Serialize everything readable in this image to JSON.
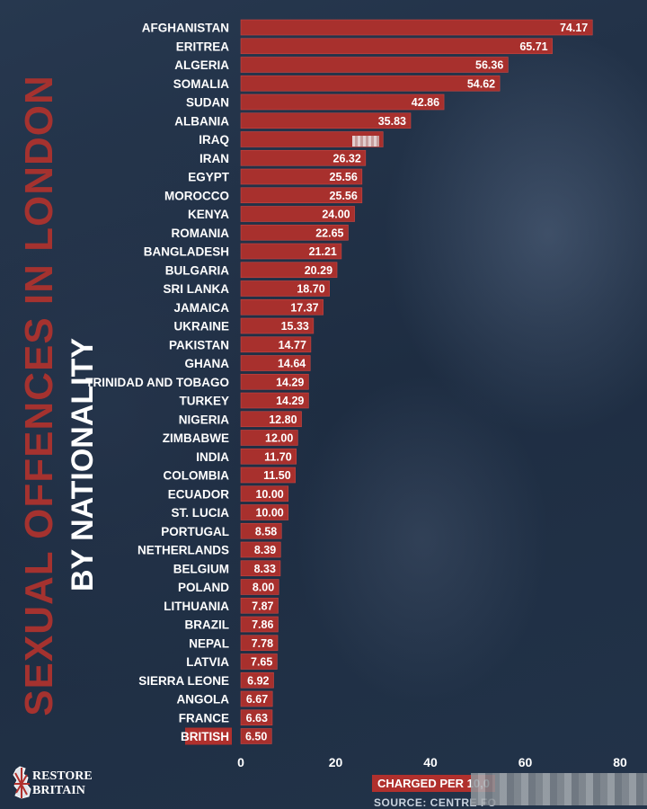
{
  "title": "SEXUAL OFFENCES IN LONDON",
  "subtitle": "BY NATIONALITY",
  "logo_text": [
    "RESTORE",
    "BRITAIN"
  ],
  "source": "SOURCE: CENTRE FO",
  "colors": {
    "bar": "#a8302d",
    "highlight": "#b0302d",
    "title": "#a5322f",
    "background": "#1f2f44"
  },
  "chart_data": {
    "type": "bar",
    "orientation": "horizontal",
    "xlabel": "CHARGED PER 10,0",
    "xlim": [
      0,
      80
    ],
    "xticks": [
      0,
      20,
      40,
      60,
      80
    ],
    "grid": false,
    "highlighted_category": "BRITISH",
    "obscured_value_labels": [
      "IRAQ"
    ],
    "categories": [
      "AFGHANISTAN",
      "ERITREA",
      "ALGERIA",
      "SOMALIA",
      "SUDAN",
      "ALBANIA",
      "IRAQ",
      "IRAN",
      "EGYPT",
      "MOROCCO",
      "KENYA",
      "ROMANIA",
      "BANGLADESH",
      "BULGARIA",
      "SRI LANKA",
      "JAMAICA",
      "UKRAINE",
      "PAKISTAN",
      "GHANA",
      "TRINIDAD AND TOBAGO",
      "TURKEY",
      "NIGERIA",
      "ZIMBABWE",
      "INDIA",
      "COLOMBIA",
      "ECUADOR",
      "ST. LUCIA",
      "PORTUGAL",
      "NETHERLANDS",
      "BELGIUM",
      "POLAND",
      "LITHUANIA",
      "BRAZIL",
      "NEPAL",
      "LATVIA",
      "SIERRA LEONE",
      "ANGOLA",
      "FRANCE",
      "BRITISH"
    ],
    "values": [
      74.17,
      65.71,
      56.36,
      54.62,
      42.86,
      35.83,
      30.0,
      26.32,
      25.56,
      25.56,
      24.0,
      22.65,
      21.21,
      20.29,
      18.7,
      17.37,
      15.33,
      14.77,
      14.64,
      14.29,
      14.29,
      12.8,
      12.0,
      11.7,
      11.5,
      10.0,
      10.0,
      8.58,
      8.39,
      8.33,
      8.0,
      7.87,
      7.86,
      7.78,
      7.65,
      6.92,
      6.67,
      6.63,
      6.5
    ],
    "value_labels": [
      "74.17",
      "65.71",
      "56.36",
      "54.62",
      "42.86",
      "35.83",
      "",
      "26.32",
      "25.56",
      "25.56",
      "24.00",
      "22.65",
      "21.21",
      "20.29",
      "18.70",
      "17.37",
      "15.33",
      "14.77",
      "14.64",
      "14.29",
      "14.29",
      "12.80",
      "12.00",
      "11.70",
      "11.50",
      "10.00",
      "10.00",
      "8.58",
      "8.39",
      "8.33",
      "8.00",
      "7.87",
      "7.86",
      "7.78",
      "7.65",
      "6.92",
      "6.67",
      "6.63",
      "6.50"
    ]
  }
}
